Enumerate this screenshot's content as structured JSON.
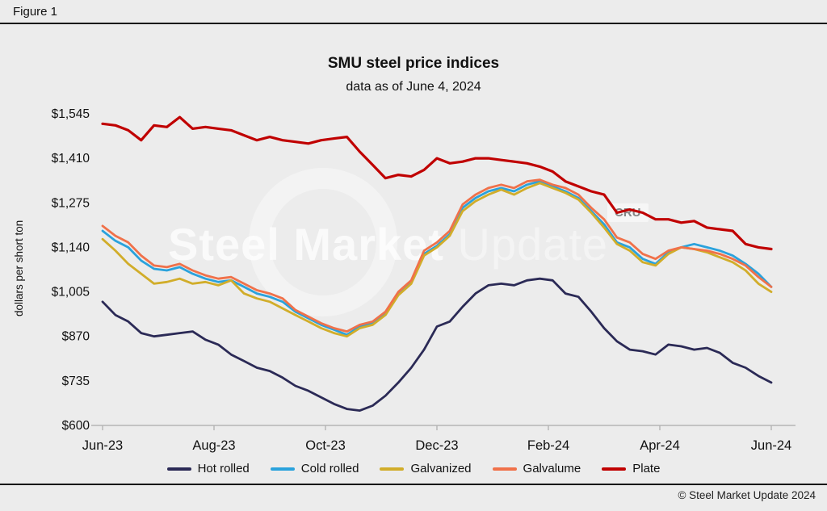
{
  "figure": {
    "label": "Figure 1"
  },
  "title": "SMU steel price indices",
  "subtitle": "data as of June 4, 2024",
  "watermark": {
    "text_primary": "Steel Market",
    "text_secondary": "Update",
    "badge": "CRU"
  },
  "footer": {
    "copyright": "© Steel Market Update 2024"
  },
  "chart_data": {
    "type": "line",
    "title": "SMU steel price indices",
    "subtitle": "data as of June 4, 2024",
    "xlabel": "",
    "ylabel": "dollars per short ton",
    "ylim": [
      600,
      1545
    ],
    "yticks": [
      600,
      735,
      870,
      1005,
      1140,
      1275,
      1410,
      1545
    ],
    "ytick_labels": [
      "$600",
      "$735",
      "$870",
      "$1,005",
      "$1,140",
      "$1,275",
      "$1,410",
      "$1,545"
    ],
    "xtick_labels": [
      "Jun-23",
      "Aug-23",
      "Oct-23",
      "Dec-23",
      "Feb-24",
      "Apr-24",
      "Jun-24"
    ],
    "grid": false,
    "legend_position": "bottom",
    "series": [
      {
        "name": "Hot rolled",
        "color": "#2b2a56",
        "width": 2.8,
        "values": [
          975,
          935,
          915,
          880,
          870,
          875,
          880,
          885,
          860,
          845,
          815,
          795,
          775,
          765,
          745,
          720,
          705,
          685,
          665,
          650,
          645,
          660,
          690,
          730,
          775,
          830,
          900,
          915,
          960,
          1000,
          1025,
          1030,
          1025,
          1040,
          1045,
          1040,
          1000,
          990,
          945,
          895,
          855,
          830,
          825,
          815,
          845,
          840,
          830,
          835,
          820,
          790,
          775,
          750,
          730
        ]
      },
      {
        "name": "Cold rolled",
        "color": "#2aa2dc",
        "width": 2.8,
        "values": [
          1190,
          1160,
          1140,
          1100,
          1075,
          1070,
          1080,
          1060,
          1045,
          1035,
          1040,
          1020,
          1000,
          990,
          975,
          945,
          925,
          905,
          890,
          875,
          900,
          910,
          940,
          1000,
          1035,
          1120,
          1145,
          1180,
          1260,
          1290,
          1310,
          1320,
          1310,
          1330,
          1340,
          1325,
          1310,
          1290,
          1250,
          1210,
          1155,
          1140,
          1105,
          1090,
          1125,
          1140,
          1150,
          1140,
          1130,
          1115,
          1090,
          1060,
          1020
        ]
      },
      {
        "name": "Galvanized",
        "color": "#d1ad2a",
        "width": 2.8,
        "values": [
          1165,
          1130,
          1090,
          1060,
          1030,
          1035,
          1045,
          1030,
          1035,
          1025,
          1040,
          1000,
          985,
          975,
          955,
          935,
          915,
          895,
          880,
          870,
          895,
          905,
          935,
          995,
          1030,
          1115,
          1140,
          1175,
          1250,
          1280,
          1300,
          1315,
          1300,
          1320,
          1335,
          1320,
          1305,
          1285,
          1245,
          1200,
          1150,
          1130,
          1095,
          1085,
          1120,
          1140,
          1135,
          1125,
          1110,
          1095,
          1070,
          1030,
          1005
        ]
      },
      {
        "name": "Galvalume",
        "color": "#f0714a",
        "width": 2.8,
        "values": [
          1205,
          1175,
          1155,
          1115,
          1085,
          1080,
          1090,
          1070,
          1055,
          1045,
          1050,
          1030,
          1010,
          1000,
          985,
          950,
          930,
          910,
          895,
          885,
          905,
          915,
          945,
          1005,
          1040,
          1130,
          1155,
          1190,
          1270,
          1300,
          1320,
          1330,
          1320,
          1340,
          1345,
          1330,
          1320,
          1300,
          1260,
          1225,
          1170,
          1155,
          1120,
          1105,
          1130,
          1140,
          1135,
          1130,
          1120,
          1105,
          1085,
          1050,
          1020
        ]
      },
      {
        "name": "Plate",
        "color": "#c00000",
        "width": 3.2,
        "values": [
          1515,
          1510,
          1495,
          1465,
          1510,
          1505,
          1535,
          1500,
          1505,
          1500,
          1495,
          1480,
          1465,
          1475,
          1465,
          1460,
          1455,
          1465,
          1470,
          1475,
          1430,
          1390,
          1350,
          1360,
          1355,
          1375,
          1410,
          1395,
          1400,
          1410,
          1410,
          1405,
          1400,
          1395,
          1385,
          1370,
          1340,
          1325,
          1310,
          1300,
          1245,
          1255,
          1245,
          1225,
          1225,
          1215,
          1220,
          1200,
          1195,
          1190,
          1150,
          1140,
          1135
        ]
      }
    ]
  }
}
